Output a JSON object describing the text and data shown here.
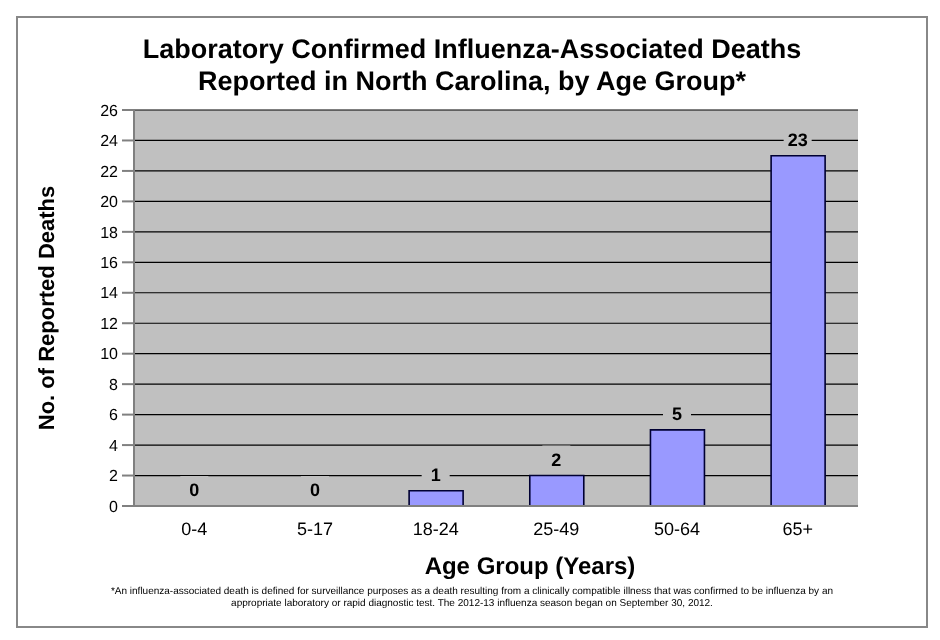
{
  "chart_data": {
    "type": "bar",
    "title": "Laboratory Confirmed Influenza-Associated Deaths Reported in North Carolina, by Age Group*",
    "xlabel": "Age Group (Years)",
    "ylabel": "No. of Reported Deaths",
    "categories": [
      "0-4",
      "5-17",
      "18-24",
      "25-49",
      "50-64",
      "65+"
    ],
    "values": [
      0,
      0,
      1,
      2,
      5,
      23
    ],
    "color": "#9999ff",
    "ylim": [
      0,
      26
    ],
    "yticks": [
      0,
      2,
      4,
      6,
      8,
      10,
      12,
      14,
      16,
      18,
      20,
      22,
      24,
      26
    ],
    "grid": "y",
    "data_labels": true,
    "annotations": [
      "*An influenza-associated death is defined for surveillance purposes as a death resulting from a clinically compatible illness that was confirmed to be influenza by an appropriate laboratory or rapid diagnostic test. The 2012-13 influenza season began on September 30, 2012."
    ]
  }
}
